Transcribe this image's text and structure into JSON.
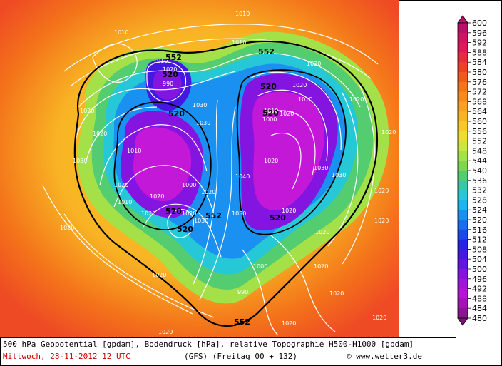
{
  "map": {
    "isobar_labels": [
      "1010",
      "1010",
      "1010",
      "1010",
      "1020",
      "1020",
      "1020",
      "1020",
      "1020",
      "1030",
      "1030",
      "1020",
      "1010",
      "1010",
      "1000",
      "990",
      "1020",
      "1010",
      "1020",
      "1030",
      "1020",
      "1020",
      "1020",
      "1000",
      "1040",
      "1030",
      "1020",
      "1030",
      "1020",
      "1020",
      "1010",
      "1030",
      "1020",
      "1020",
      "1030",
      "1020",
      "1020",
      "1020",
      "1020",
      "1020",
      "1000",
      "990",
      "1020",
      "1020",
      "1020",
      "1020"
    ],
    "height_labels": [
      "552",
      "552",
      "520",
      "520",
      "520",
      "520",
      "520",
      "552",
      "520",
      "552",
      "520"
    ],
    "colors": {
      "ocean_warm": "#f08a1e",
      "land_cool": "#22c4ec",
      "low": "#c418d8"
    }
  },
  "scale": {
    "ticks": [
      "600",
      "596",
      "592",
      "588",
      "584",
      "580",
      "576",
      "572",
      "568",
      "564",
      "560",
      "556",
      "552",
      "548",
      "544",
      "540",
      "536",
      "532",
      "528",
      "524",
      "520",
      "516",
      "512",
      "508",
      "504",
      "500",
      "496",
      "492",
      "488",
      "484",
      "480"
    ],
    "colors": [
      "#b8106a",
      "#d01464",
      "#e0185a",
      "#e82c40",
      "#ee4028",
      "#f25a1c",
      "#f4741a",
      "#f68a1e",
      "#f8a020",
      "#f8b424",
      "#f8c828",
      "#eedc30",
      "#cce63c",
      "#a4e048",
      "#7cd650",
      "#54cc70",
      "#38c8a8",
      "#26c8d8",
      "#1ab4ee",
      "#1a90f0",
      "#1a6cf0",
      "#1a48ec",
      "#2424e4",
      "#4418e0",
      "#6414e0",
      "#8414e0",
      "#a014dc",
      "#b414d4",
      "#a414b4",
      "#8a1492",
      "#7a1478"
    ]
  },
  "info": {
    "line1": "500 hPa Geopotential [gpdam], Bodendruck [hPa], relative Topographie H500-H1000 [gpdam]",
    "date": "Mittwoch, 28-11-2012  12 UTC",
    "model": "(GFS)  (Freitag 00 + 132)",
    "copyright": "© www.wetter3.de"
  }
}
